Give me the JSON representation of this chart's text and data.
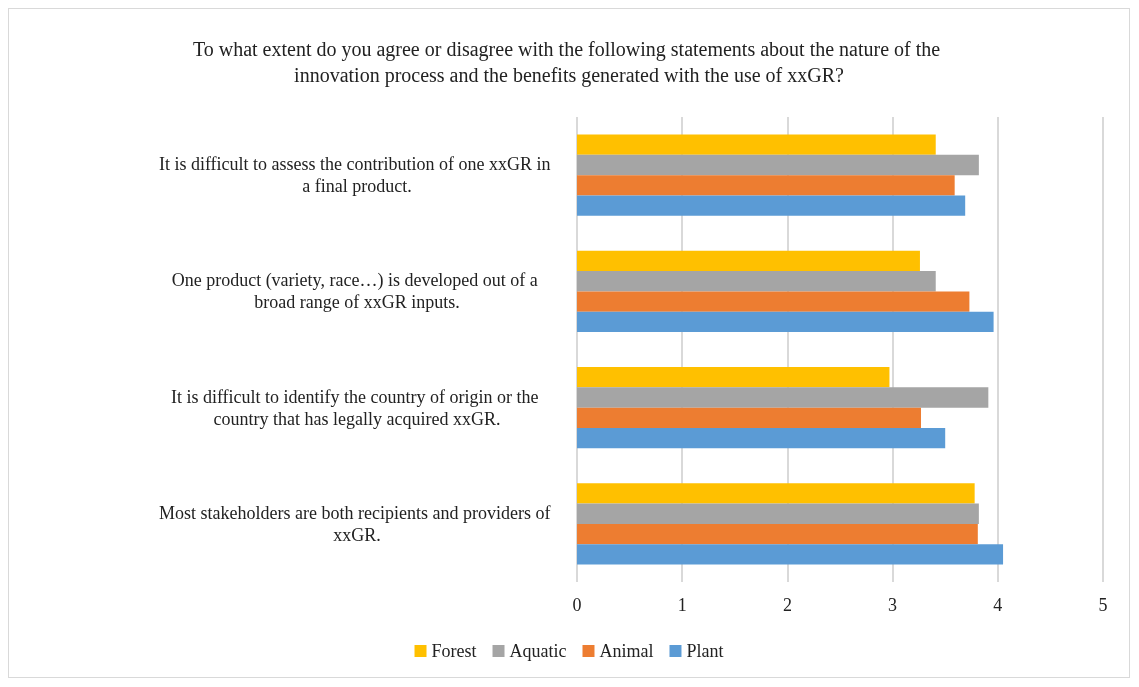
{
  "chart_data": {
    "type": "bar",
    "orientation": "horizontal",
    "title": "To what extent do you agree or disagree with the following statements about the nature of the innovation process and the benefits generated with the use of xxGR?",
    "categories": [
      "It is difficult to assess the contribution of one xxGR in a final product.",
      "One product (variety, race…) is developed out of a broad range of xxGR inputs.",
      "It is difficult to identify the country of origin or the country that has legally acquired xxGR.",
      "Most stakeholders are both recipients and providers of xxGR."
    ],
    "series": [
      {
        "name": "Forest",
        "color": "#ffc000",
        "values": [
          3.41,
          3.26,
          2.97,
          3.78
        ]
      },
      {
        "name": "Aquatic",
        "color": "#a5a5a5",
        "values": [
          3.82,
          3.41,
          3.91,
          3.82
        ]
      },
      {
        "name": "Animal",
        "color": "#ed7d31",
        "values": [
          3.59,
          3.73,
          3.27,
          3.81
        ]
      },
      {
        "name": "Plant",
        "color": "#5b9bd5",
        "values": [
          3.69,
          3.96,
          3.5,
          4.05
        ]
      }
    ],
    "xlim": [
      0,
      5
    ],
    "xticks": [
      0,
      1,
      2,
      3,
      4,
      5
    ],
    "grid": "x",
    "legend": "bottom"
  }
}
